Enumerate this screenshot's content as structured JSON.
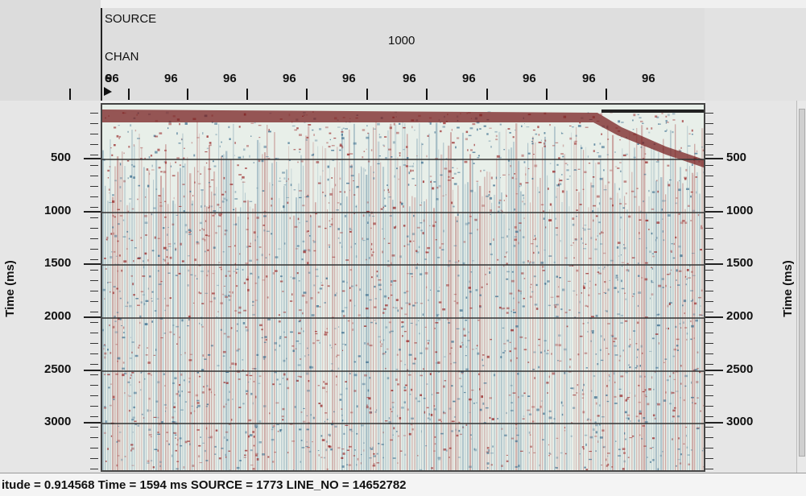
{
  "header": {
    "source_label": "SOURCE",
    "source_value": "1000",
    "chan_label": "CHAN",
    "chan_first": "6",
    "chan_ticks": [
      "96",
      "96",
      "96",
      "96",
      "96",
      "96",
      "96",
      "96",
      "96",
      "96"
    ]
  },
  "axes": {
    "left_title": "Time (ms)",
    "right_title": "Time (ms)",
    "time_ticks": [
      "500",
      "1000",
      "1500",
      "2000",
      "2500",
      "3000"
    ]
  },
  "status": {
    "text": "itude = 0.914568  Time = 1594 ms  SOURCE = 1773  LINE_NO = 14652782"
  },
  "colors": {
    "trace_red": "#9a2a2a",
    "trace_blue": "#3c6e8e",
    "background": "#e8efe9"
  }
}
